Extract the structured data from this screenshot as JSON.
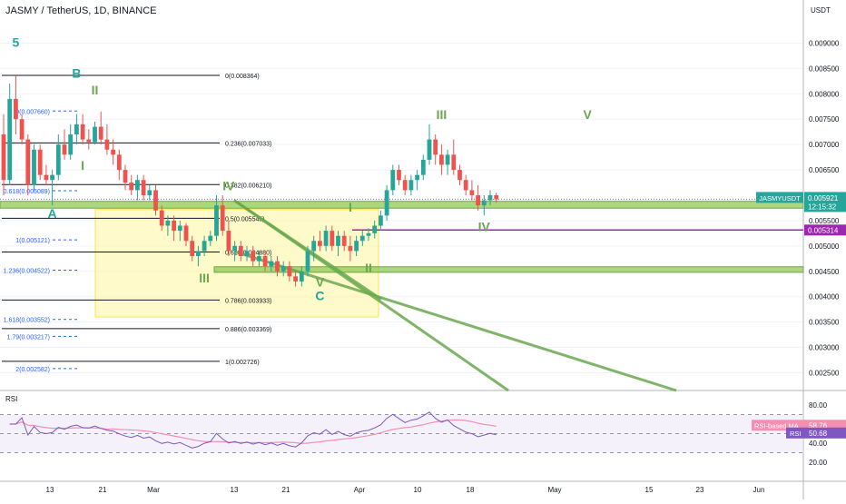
{
  "header": {
    "symbol_title": "JASMY / TetherUS, 1D, BINANCE",
    "currency": "USDT"
  },
  "colors": {
    "up": "#26a69a",
    "down": "#ef5350",
    "fib": "#131722",
    "fib_alt": "#2962ff",
    "zone": "#8bc34a",
    "zone_edge": "#6aa84f",
    "box": "#fff59d",
    "purple": "#9c27b0",
    "rsi_line": "#7e57c2",
    "rsi_ma": "#f48fb1",
    "label_last": "#26a69a",
    "wave_teal": "#26a69a",
    "wave_olive": "#6aa84f"
  },
  "price_axis": {
    "ticks": [
      "0.009000",
      "0.008500",
      "0.008000",
      "0.007500",
      "0.007000",
      "0.006500",
      "0.005500",
      "0.005000",
      "0.004500",
      "0.004000",
      "0.003500",
      "0.003000",
      "0.002500"
    ],
    "last_symbol": "JASMYUSDT",
    "last_price": "0.005921",
    "countdown": "12:15:32",
    "level_price": "0.005314"
  },
  "rsi_axis": {
    "ticks": [
      "80.00",
      "40.00",
      "20.00"
    ],
    "ma_label": "RSI-based MA",
    "ma_value": "58.76",
    "rsi_label": "RSI",
    "rsi_value": "50.68",
    "pane_title": "RSI"
  },
  "time_axis": {
    "labels": [
      "13",
      "21",
      "Mar",
      "13",
      "21",
      "Apr",
      "10",
      "18",
      "May",
      "15",
      "23",
      "Jun"
    ]
  },
  "fib_right": [
    {
      "text": "0(0.008364)",
      "price": 0.008364
    },
    {
      "text": "0.236(0.007033)",
      "price": 0.007033
    },
    {
      "text": "0.382(0.006210)",
      "price": 0.00621
    },
    {
      "text": "0.5(0.005545)",
      "price": 0.005545
    },
    {
      "text": "0.618(0.004880)",
      "price": 0.00488
    },
    {
      "text": "0.786(0.003933)",
      "price": 0.003933
    },
    {
      "text": "0.886(0.003369)",
      "price": 0.003369
    },
    {
      "text": "1(0.002726)",
      "price": 0.002726
    }
  ],
  "fib_left": [
    {
      "text": "0(0.007660)",
      "price": 0.00766
    },
    {
      "text": "0.618(0.006089)",
      "price": 0.006089
    },
    {
      "text": "1(0.005121)",
      "price": 0.005121
    },
    {
      "text": "1.236(0.004522)",
      "price": 0.004522
    },
    {
      "text": "1.618(0.003552)",
      "price": 0.003552
    },
    {
      "text": "1.79(0.003217)",
      "price": 0.003217
    },
    {
      "text": "2(0.002582)",
      "price": 0.002582
    }
  ],
  "wave_labels": [
    {
      "text": "5",
      "day": 2,
      "price": 0.00893,
      "color": "teal"
    },
    {
      "text": "B",
      "day": 12,
      "price": 0.00832,
      "color": "teal"
    },
    {
      "text": "II",
      "day": 15,
      "price": 0.00799,
      "color": "olive"
    },
    {
      "text": "I",
      "day": 13,
      "price": 0.0065,
      "color": "olive"
    },
    {
      "text": "A",
      "day": 8,
      "price": 0.00555,
      "color": "teal"
    },
    {
      "text": "IV",
      "day": 37,
      "price": 0.0061,
      "color": "olive"
    },
    {
      "text": "III",
      "day": 33,
      "price": 0.00428,
      "color": "olive"
    },
    {
      "text": "V",
      "day": 52,
      "price": 0.0042,
      "color": "olive"
    },
    {
      "text": "C",
      "day": 52,
      "price": 0.00393,
      "color": "teal"
    },
    {
      "text": "I",
      "day": 57,
      "price": 0.00568,
      "color": "olive"
    },
    {
      "text": "II",
      "day": 60,
      "price": 0.00448,
      "color": "olive"
    },
    {
      "text": "III",
      "day": 72,
      "price": 0.0075,
      "color": "olive"
    },
    {
      "text": "IV",
      "day": 79,
      "price": 0.00529,
      "color": "olive"
    },
    {
      "text": "V",
      "day": 96,
      "price": 0.0075,
      "color": "olive"
    }
  ],
  "chart_data": {
    "type": "candlestick",
    "title": "JASMY / TetherUS, 1D, BINANCE",
    "x_days": "day index, 0 = 3 Feb",
    "ylim": [
      0.00215,
      0.00985
    ],
    "candles": [
      {
        "o": 0.0072,
        "h": 0.0076,
        "l": 0.006,
        "c": 0.0063
      },
      {
        "o": 0.0063,
        "h": 0.0082,
        "l": 0.0062,
        "c": 0.0079
      },
      {
        "o": 0.0079,
        "h": 0.00836,
        "l": 0.0072,
        "c": 0.0075
      },
      {
        "o": 0.0075,
        "h": 0.0076,
        "l": 0.007,
        "c": 0.0071
      },
      {
        "o": 0.0071,
        "h": 0.0072,
        "l": 0.006,
        "c": 0.0062
      },
      {
        "o": 0.0062,
        "h": 0.007,
        "l": 0.0061,
        "c": 0.0069
      },
      {
        "o": 0.0069,
        "h": 0.007,
        "l": 0.0063,
        "c": 0.0064
      },
      {
        "o": 0.0064,
        "h": 0.0066,
        "l": 0.0062,
        "c": 0.0063
      },
      {
        "o": 0.0063,
        "h": 0.0065,
        "l": 0.0058,
        "c": 0.0064
      },
      {
        "o": 0.0064,
        "h": 0.0072,
        "l": 0.0063,
        "c": 0.007
      },
      {
        "o": 0.007,
        "h": 0.0073,
        "l": 0.0067,
        "c": 0.0068
      },
      {
        "o": 0.0068,
        "h": 0.0074,
        "l": 0.0067,
        "c": 0.0072
      },
      {
        "o": 0.0072,
        "h": 0.0076,
        "l": 0.007,
        "c": 0.0074
      },
      {
        "o": 0.0074,
        "h": 0.0076,
        "l": 0.007,
        "c": 0.0071
      },
      {
        "o": 0.0071,
        "h": 0.0073,
        "l": 0.0069,
        "c": 0.00705
      },
      {
        "o": 0.00705,
        "h": 0.00745,
        "l": 0.007,
        "c": 0.00735
      },
      {
        "o": 0.00735,
        "h": 0.00765,
        "l": 0.007,
        "c": 0.0071
      },
      {
        "o": 0.0071,
        "h": 0.0074,
        "l": 0.0068,
        "c": 0.0069
      },
      {
        "o": 0.0069,
        "h": 0.0071,
        "l": 0.0066,
        "c": 0.0068
      },
      {
        "o": 0.0068,
        "h": 0.0069,
        "l": 0.0063,
        "c": 0.0065
      },
      {
        "o": 0.0065,
        "h": 0.0066,
        "l": 0.0061,
        "c": 0.00625
      },
      {
        "o": 0.00625,
        "h": 0.0064,
        "l": 0.006,
        "c": 0.0061
      },
      {
        "o": 0.0061,
        "h": 0.0064,
        "l": 0.0059,
        "c": 0.0063
      },
      {
        "o": 0.0063,
        "h": 0.0064,
        "l": 0.0059,
        "c": 0.006
      },
      {
        "o": 0.006,
        "h": 0.0062,
        "l": 0.0059,
        "c": 0.0061
      },
      {
        "o": 0.0061,
        "h": 0.0062,
        "l": 0.0056,
        "c": 0.0057
      },
      {
        "o": 0.0057,
        "h": 0.0058,
        "l": 0.0053,
        "c": 0.0054
      },
      {
        "o": 0.0054,
        "h": 0.0056,
        "l": 0.0052,
        "c": 0.0055
      },
      {
        "o": 0.0055,
        "h": 0.0056,
        "l": 0.0051,
        "c": 0.0053
      },
      {
        "o": 0.0053,
        "h": 0.0055,
        "l": 0.0051,
        "c": 0.0054
      },
      {
        "o": 0.0054,
        "h": 0.00545,
        "l": 0.005,
        "c": 0.0051
      },
      {
        "o": 0.0051,
        "h": 0.0052,
        "l": 0.0047,
        "c": 0.0048
      },
      {
        "o": 0.0048,
        "h": 0.005,
        "l": 0.0046,
        "c": 0.0049
      },
      {
        "o": 0.0049,
        "h": 0.0052,
        "l": 0.0048,
        "c": 0.0051
      },
      {
        "o": 0.0051,
        "h": 0.0053,
        "l": 0.005,
        "c": 0.0052
      },
      {
        "o": 0.0052,
        "h": 0.006,
        "l": 0.0051,
        "c": 0.0058
      },
      {
        "o": 0.0058,
        "h": 0.006,
        "l": 0.0052,
        "c": 0.0053
      },
      {
        "o": 0.0053,
        "h": 0.0055,
        "l": 0.0048,
        "c": 0.0049
      },
      {
        "o": 0.0049,
        "h": 0.0051,
        "l": 0.0047,
        "c": 0.005
      },
      {
        "o": 0.005,
        "h": 0.0051,
        "l": 0.0047,
        "c": 0.0048
      },
      {
        "o": 0.0048,
        "h": 0.005,
        "l": 0.0047,
        "c": 0.0049
      },
      {
        "o": 0.0049,
        "h": 0.005,
        "l": 0.0046,
        "c": 0.0047
      },
      {
        "o": 0.0047,
        "h": 0.0049,
        "l": 0.0046,
        "c": 0.0048
      },
      {
        "o": 0.0048,
        "h": 0.0049,
        "l": 0.0045,
        "c": 0.0046
      },
      {
        "o": 0.0046,
        "h": 0.0048,
        "l": 0.0045,
        "c": 0.0047
      },
      {
        "o": 0.0047,
        "h": 0.0048,
        "l": 0.0044,
        "c": 0.0045
      },
      {
        "o": 0.0045,
        "h": 0.0047,
        "l": 0.0044,
        "c": 0.0046
      },
      {
        "o": 0.0046,
        "h": 0.0047,
        "l": 0.0043,
        "c": 0.0044
      },
      {
        "o": 0.0044,
        "h": 0.0045,
        "l": 0.0042,
        "c": 0.0043
      },
      {
        "o": 0.0043,
        "h": 0.0046,
        "l": 0.0042,
        "c": 0.0045
      },
      {
        "o": 0.0045,
        "h": 0.005,
        "l": 0.0044,
        "c": 0.0049
      },
      {
        "o": 0.0049,
        "h": 0.0052,
        "l": 0.0047,
        "c": 0.0051
      },
      {
        "o": 0.0051,
        "h": 0.0053,
        "l": 0.0049,
        "c": 0.005
      },
      {
        "o": 0.005,
        "h": 0.0054,
        "l": 0.0049,
        "c": 0.0053
      },
      {
        "o": 0.0053,
        "h": 0.0054,
        "l": 0.0049,
        "c": 0.005
      },
      {
        "o": 0.005,
        "h": 0.0053,
        "l": 0.0048,
        "c": 0.0052
      },
      {
        "o": 0.0052,
        "h": 0.0053,
        "l": 0.0049,
        "c": 0.005
      },
      {
        "o": 0.005,
        "h": 0.0052,
        "l": 0.0047,
        "c": 0.0049
      },
      {
        "o": 0.0049,
        "h": 0.0052,
        "l": 0.0048,
        "c": 0.0051
      },
      {
        "o": 0.0051,
        "h": 0.0053,
        "l": 0.005,
        "c": 0.0052
      },
      {
        "o": 0.0052,
        "h": 0.00535,
        "l": 0.0051,
        "c": 0.00525
      },
      {
        "o": 0.00525,
        "h": 0.0055,
        "l": 0.00515,
        "c": 0.0054
      },
      {
        "o": 0.0054,
        "h": 0.0057,
        "l": 0.0053,
        "c": 0.0056
      },
      {
        "o": 0.0056,
        "h": 0.0062,
        "l": 0.0055,
        "c": 0.0061
      },
      {
        "o": 0.0061,
        "h": 0.0066,
        "l": 0.006,
        "c": 0.0065
      },
      {
        "o": 0.0065,
        "h": 0.0066,
        "l": 0.0062,
        "c": 0.0063
      },
      {
        "o": 0.0063,
        "h": 0.0064,
        "l": 0.006,
        "c": 0.0061
      },
      {
        "o": 0.0061,
        "h": 0.0064,
        "l": 0.006,
        "c": 0.0063
      },
      {
        "o": 0.0063,
        "h": 0.0065,
        "l": 0.0061,
        "c": 0.0064
      },
      {
        "o": 0.0064,
        "h": 0.0068,
        "l": 0.0063,
        "c": 0.0067
      },
      {
        "o": 0.0067,
        "h": 0.0074,
        "l": 0.0066,
        "c": 0.0071
      },
      {
        "o": 0.0071,
        "h": 0.0072,
        "l": 0.0066,
        "c": 0.0068
      },
      {
        "o": 0.0068,
        "h": 0.007,
        "l": 0.0064,
        "c": 0.0066
      },
      {
        "o": 0.0066,
        "h": 0.0069,
        "l": 0.0064,
        "c": 0.0068
      },
      {
        "o": 0.0068,
        "h": 0.0071,
        "l": 0.0064,
        "c": 0.0065
      },
      {
        "o": 0.0065,
        "h": 0.0066,
        "l": 0.0062,
        "c": 0.0063
      },
      {
        "o": 0.0063,
        "h": 0.0064,
        "l": 0.006,
        "c": 0.0061
      },
      {
        "o": 0.0061,
        "h": 0.0063,
        "l": 0.0059,
        "c": 0.006
      },
      {
        "o": 0.006,
        "h": 0.0062,
        "l": 0.0057,
        "c": 0.0058
      },
      {
        "o": 0.0058,
        "h": 0.006,
        "l": 0.0056,
        "c": 0.0059
      },
      {
        "o": 0.0059,
        "h": 0.0061,
        "l": 0.0058,
        "c": 0.006
      },
      {
        "o": 0.006,
        "h": 0.00605,
        "l": 0.00585,
        "c": 0.00592
      }
    ]
  }
}
